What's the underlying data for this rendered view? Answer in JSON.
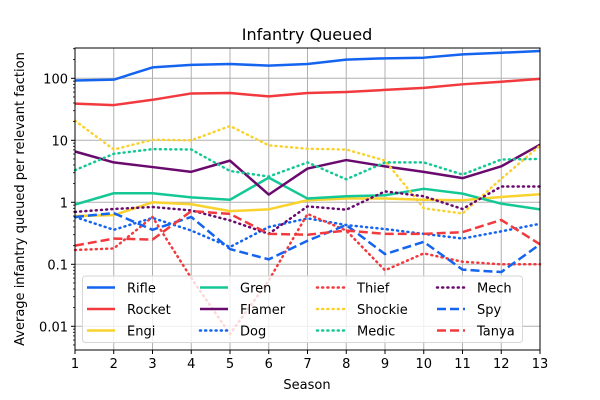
{
  "chart_data": {
    "type": "line",
    "title": "Infantry Queued",
    "xlabel": "Season",
    "ylabel": "Average infantry queued per relevant faction",
    "yscale": "log",
    "xlim": [
      1,
      13
    ],
    "ylim": [
      0.004,
      300
    ],
    "grid": true,
    "legend_position": "lower-center",
    "x": [
      1,
      2,
      3,
      4,
      5,
      6,
      7,
      8,
      9,
      10,
      11,
      12,
      13
    ],
    "x_tick_labels": [
      "1",
      "2",
      "3",
      "4",
      "5",
      "6",
      "7",
      "8",
      "9",
      "10",
      "11",
      "12",
      "13"
    ],
    "y_ticks": [
      0.01,
      0.1,
      1,
      10,
      100
    ],
    "y_tick_labels": [
      "0.01",
      "0.1",
      "1",
      "10",
      "100"
    ],
    "series": [
      {
        "name": "Rifle",
        "color": "#1464f0",
        "style": "solid",
        "values": [
          92,
          95,
          150,
          165,
          170,
          160,
          170,
          200,
          210,
          215,
          243,
          258,
          276
        ]
      },
      {
        "name": "Rocket",
        "color": "#f23a3e",
        "style": "solid",
        "values": [
          39,
          37,
          45,
          57,
          58,
          51,
          58,
          60,
          65,
          70,
          80,
          88,
          98
        ]
      },
      {
        "name": "Engi",
        "color": "#fad22d",
        "style": "solid",
        "values": [
          0.6,
          0.62,
          1.0,
          0.93,
          0.72,
          0.77,
          1.08,
          1.15,
          1.15,
          1.1,
          1.08,
          1.22,
          1.35
        ]
      },
      {
        "name": "Gren",
        "color": "#14c896",
        "style": "solid",
        "values": [
          0.92,
          1.4,
          1.4,
          1.2,
          1.1,
          2.5,
          1.15,
          1.25,
          1.3,
          1.65,
          1.38,
          0.95,
          0.77
        ]
      },
      {
        "name": "Flamer",
        "color": "#6a0a6e",
        "style": "solid",
        "values": [
          6.6,
          4.4,
          3.7,
          3.1,
          4.7,
          1.33,
          3.5,
          4.8,
          3.8,
          3.1,
          2.45,
          3.8,
          8.5
        ]
      },
      {
        "name": "Dog",
        "color": "#1464f0",
        "style": "dotted",
        "values": [
          0.58,
          0.36,
          0.56,
          0.35,
          0.19,
          0.4,
          0.55,
          0.43,
          0.37,
          0.31,
          0.26,
          0.34,
          0.45
        ]
      },
      {
        "name": "Thief",
        "color": "#f23a3e",
        "style": "dotted",
        "values": [
          0.17,
          0.18,
          0.58,
          0.06,
          0.0075,
          0.055,
          0.65,
          0.35,
          0.08,
          0.15,
          0.11,
          0.1,
          0.1
        ]
      },
      {
        "name": "Shockie",
        "color": "#fad22d",
        "style": "dotted",
        "values": [
          20.7,
          7.1,
          10.2,
          10,
          17,
          8.3,
          7.3,
          7.1,
          4.7,
          0.8,
          0.66,
          2.4,
          8.2
        ]
      },
      {
        "name": "Medic",
        "color": "#14c896",
        "style": "dotted",
        "values": [
          3.3,
          6.05,
          7.2,
          7.1,
          3.2,
          2.6,
          4.4,
          2.35,
          4.4,
          4.4,
          2.8,
          4.9,
          5.0
        ]
      },
      {
        "name": "Mech",
        "color": "#6a0a6e",
        "style": "dotted",
        "values": [
          0.7,
          0.78,
          0.84,
          0.74,
          0.51,
          0.31,
          0.86,
          0.76,
          1.5,
          1.25,
          0.78,
          1.8,
          1.8
        ]
      },
      {
        "name": "Spy",
        "color": "#1464f0",
        "style": "dashed",
        "values": [
          0.58,
          0.67,
          0.36,
          0.58,
          0.176,
          0.12,
          0.24,
          0.43,
          0.146,
          0.23,
          0.082,
          0.075,
          0.21
        ]
      },
      {
        "name": "Tanya",
        "color": "#f23a3e",
        "style": "dashed",
        "values": [
          0.2,
          0.26,
          0.25,
          0.72,
          0.65,
          0.31,
          0.3,
          0.35,
          0.31,
          0.31,
          0.33,
          0.52,
          0.21
        ]
      }
    ]
  }
}
